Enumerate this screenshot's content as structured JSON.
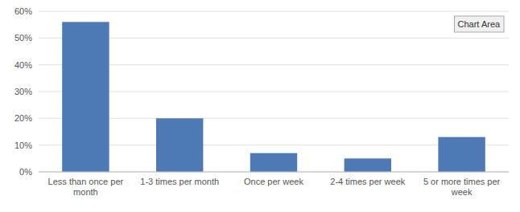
{
  "chart_data": {
    "type": "bar",
    "categories": [
      "Less than once per\nmonth",
      "1-3 times per month",
      "Once per week",
      "2-4 times per week",
      "5 or more times per\nweek"
    ],
    "values": [
      0.56,
      0.2,
      0.07,
      0.05,
      0.13
    ],
    "color": "#4d7ab5",
    "ylim": [
      0,
      0.6
    ],
    "yticks": [
      {
        "value": 0.0,
        "label": "0%"
      },
      {
        "value": 0.1,
        "label": "10%"
      },
      {
        "value": 0.2,
        "label": "20%"
      },
      {
        "value": 0.3,
        "label": "30%"
      },
      {
        "value": 0.4,
        "label": "40%"
      },
      {
        "value": 0.5,
        "label": "50%"
      },
      {
        "value": 0.6,
        "label": "60%"
      }
    ],
    "grid": true,
    "annotations": [
      "Chart Area"
    ]
  }
}
